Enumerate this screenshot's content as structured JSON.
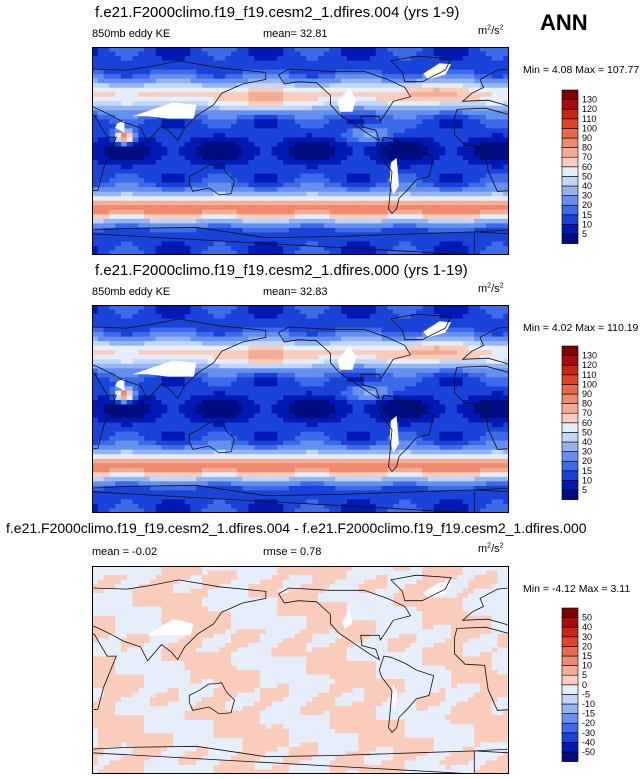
{
  "season_label": "ANN",
  "units": {
    "base": "m",
    "sup1": "2",
    "mid": "/s",
    "sup2": "2"
  },
  "palette": {
    "abs": [
      "#000c80",
      "#0019b3",
      "#1a44d9",
      "#3d6ae8",
      "#6690f0",
      "#94b4f2",
      "#c2d6f7",
      "#e6eefb",
      "#fde6dc",
      "#f9ccbb",
      "#f4ad94",
      "#ef8a6e",
      "#e8684a",
      "#dd4528",
      "#c92614",
      "#a80b0b",
      "#800000"
    ],
    "diff": [
      "#000c80",
      "#0019b3",
      "#1a44d9",
      "#3d6ae8",
      "#6690f0",
      "#94b4f2",
      "#c2d6f7",
      "#e6eefb",
      "#fde6dc",
      "#f9ccbb",
      "#f4ad94",
      "#ef8a6e",
      "#e8684a",
      "#dd4528",
      "#c92614",
      "#a80b0b",
      "#800000"
    ]
  },
  "panels": [
    {
      "title": "f.e21.F2000climo.f19_f19.cesm2_1.dfires.004 (yrs 1-9)",
      "left_label": "850mb eddy KE",
      "mid_label": "mean=  32.81",
      "minmax": "Min =  4.08 Max = 107.77",
      "colorbar_levels": [
        "5",
        "10",
        "15",
        "20",
        "30",
        "40",
        "50",
        "60",
        "70",
        "80",
        "90",
        "100",
        "110",
        "120",
        "130"
      ]
    },
    {
      "title": "f.e21.F2000climo.f19_f19.cesm2_1.dfires.000 (yrs 1-19)",
      "left_label": "850mb eddy KE",
      "mid_label": "mean=  32.83",
      "minmax": "Min =  4.02 Max = 110.19",
      "colorbar_levels": [
        "5",
        "10",
        "15",
        "20",
        "30",
        "40",
        "50",
        "60",
        "70",
        "80",
        "90",
        "100",
        "110",
        "120",
        "130"
      ]
    },
    {
      "title": "f.e21.F2000climo.f19_f19.cesm2_1.dfires.004 - f.e21.F2000climo.f19_f19.cesm2_1.dfires.000",
      "left_label": "mean = -0.02",
      "mid_label": "rmse =  0.78",
      "minmax": "Min = -4.12 Max =  3.11",
      "colorbar_levels": [
        "-50",
        "-40",
        "-30",
        "-20",
        "-15",
        "-10",
        "-5",
        "0",
        "5",
        "10",
        "15",
        "20",
        "30",
        "40",
        "50"
      ]
    }
  ],
  "chart_data": {
    "type": "heatmap",
    "description_source": "CESM2 850mb eddy kinetic energy, annual mean",
    "fields": [
      {
        "name": "dfires.004",
        "units": "m2/s2",
        "mean": 32.81,
        "min": 4.08,
        "max": 107.77,
        "levels": [
          5,
          10,
          15,
          20,
          30,
          40,
          50,
          60,
          70,
          80,
          90,
          100,
          110,
          120,
          130
        ]
      },
      {
        "name": "dfires.000",
        "units": "m2/s2",
        "mean": 32.83,
        "min": 4.02,
        "max": 110.19,
        "levels": [
          5,
          10,
          15,
          20,
          30,
          40,
          50,
          60,
          70,
          80,
          90,
          100,
          110,
          120,
          130
        ]
      },
      {
        "name": "dfires.004 - dfires.000",
        "units": "m2/s2",
        "mean": -0.02,
        "rmse": 0.78,
        "min": -4.12,
        "max": 3.11,
        "levels": [
          -50,
          -40,
          -30,
          -20,
          -15,
          -10,
          -5,
          0,
          5,
          10,
          15,
          20,
          30,
          40,
          50
        ]
      }
    ]
  }
}
